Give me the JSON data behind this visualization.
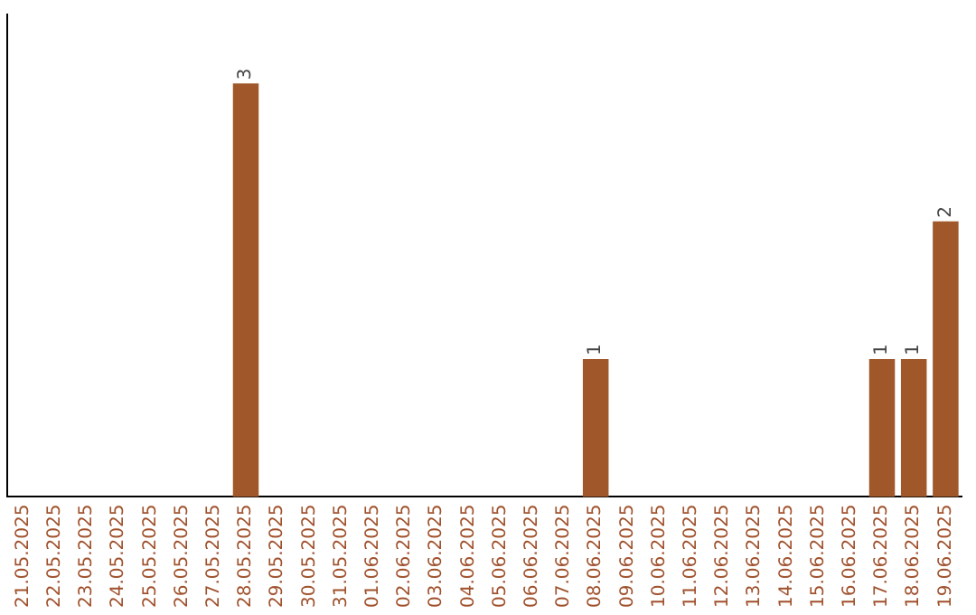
{
  "chart_data": {
    "type": "bar",
    "categories": [
      "21.05.2025",
      "22.05.2025",
      "23.05.2025",
      "24.05.2025",
      "25.05.2025",
      "26.05.2025",
      "27.05.2025",
      "28.05.2025",
      "29.05.2025",
      "30.05.2025",
      "31.05.2025",
      "01.06.2025",
      "02.06.2025",
      "03.06.2025",
      "04.06.2025",
      "05.06.2025",
      "06.06.2025",
      "07.06.2025",
      "08.06.2025",
      "09.06.2025",
      "10.06.2025",
      "11.06.2025",
      "12.06.2025",
      "13.06.2025",
      "14.06.2025",
      "15.06.2025",
      "16.06.2025",
      "17.06.2025",
      "18.06.2025",
      "19.06.2025"
    ],
    "values": [
      0,
      0,
      0,
      0,
      0,
      0,
      0,
      3,
      0,
      0,
      0,
      0,
      0,
      0,
      0,
      0,
      0,
      0,
      1,
      0,
      0,
      0,
      0,
      0,
      0,
      0,
      0,
      1,
      1,
      2
    ],
    "value_labels": [
      null,
      null,
      null,
      null,
      null,
      null,
      null,
      "3",
      null,
      null,
      null,
      null,
      null,
      null,
      null,
      null,
      null,
      null,
      "1",
      null,
      null,
      null,
      null,
      null,
      null,
      null,
      null,
      "1",
      "1",
      "2"
    ],
    "color": "#a0582a",
    "grid": false,
    "legend": false,
    "tick_labels": "x"
  }
}
